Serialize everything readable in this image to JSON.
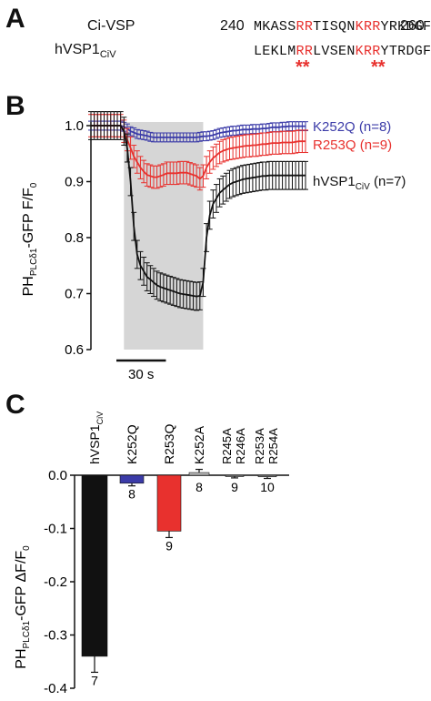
{
  "panels": {
    "a": "A",
    "b": "B",
    "c": "C"
  },
  "sequences": {
    "row1": {
      "name": "Ci-VSP",
      "start": "240",
      "end": "260",
      "segments": [
        {
          "text": "MKASS",
          "red": false
        },
        {
          "text": "RR",
          "red": true
        },
        {
          "text": "TISQN",
          "red": false
        },
        {
          "text": "KRR",
          "red": true
        },
        {
          "text": "YRKDGF",
          "red": false
        }
      ]
    },
    "row2": {
      "name_main": "hVSP1",
      "name_sub": "CiV",
      "segments": [
        {
          "text": "LEKLM",
          "red": false
        },
        {
          "text": "RR",
          "red": true
        },
        {
          "text": "LVSEN",
          "red": false
        },
        {
          "text": "KRR",
          "red": true
        },
        {
          "text": "YTRDGF",
          "red": false
        }
      ],
      "asterisks": "**"
    }
  },
  "colors": {
    "blue": "#3b3ba8",
    "red": "#e8312e",
    "black": "#111111",
    "gray_shade": "#d6d6d6",
    "bar_gray": "#bdbdbd"
  },
  "chart_data": [
    {
      "type": "line",
      "ylabel_main": "PH",
      "ylabel_sub": "PLCδ1",
      "ylabel_rest": "-GFP  F/F",
      "ylabel_sub2": "0",
      "ylim": [
        0.6,
        1.0
      ],
      "yticks": [
        "0.6",
        "0.7",
        "0.8",
        "0.9",
        "1.0"
      ],
      "scale_bar_label": "30 s",
      "x": [
        0,
        2,
        4,
        6,
        8,
        10,
        12,
        14,
        16,
        18,
        20,
        22,
        24,
        26,
        28,
        30,
        32,
        34,
        36,
        38,
        40,
        42,
        44,
        46,
        48,
        50,
        52,
        54,
        56,
        58,
        60,
        62,
        64,
        66,
        68,
        70,
        72,
        74,
        76,
        78,
        80,
        82,
        84,
        86,
        88,
        90,
        92,
        94,
        96,
        98,
        100,
        102,
        104,
        106,
        108,
        110,
        112,
        114,
        116,
        118,
        120,
        122,
        124,
        126,
        128,
        130
      ],
      "series": [
        {
          "name": "K252Q (n=8)",
          "color": "#3b3ba8",
          "values": [
            1.0,
            1.0,
            1.0,
            1.0,
            1.0,
            1.0,
            1.0,
            1.0,
            1.0,
            1.0,
            0.998,
            0.995,
            0.99,
            0.988,
            0.985,
            0.984,
            0.983,
            0.982,
            0.98,
            0.979,
            0.979,
            0.979,
            0.979,
            0.979,
            0.979,
            0.979,
            0.979,
            0.979,
            0.979,
            0.979,
            0.979,
            0.979,
            0.979,
            0.98,
            0.981,
            0.981,
            0.982,
            0.983,
            0.985,
            0.987,
            0.988,
            0.989,
            0.99,
            0.991,
            0.991,
            0.992,
            0.993,
            0.993,
            0.993,
            0.994,
            0.994,
            0.994,
            0.995,
            0.995,
            0.996,
            0.997,
            0.997,
            0.997,
            0.998,
            0.998,
            0.999,
            0.999,
            0.999,
            0.999,
            0.999,
            0.999
          ],
          "error": 0.008
        },
        {
          "name": "R253Q (n=9)",
          "color": "#e8312e",
          "values": [
            1.0,
            1.0,
            1.0,
            1.0,
            1.0,
            1.0,
            1.0,
            1.0,
            1.0,
            1.0,
            0.99,
            0.975,
            0.96,
            0.945,
            0.935,
            0.925,
            0.918,
            0.912,
            0.91,
            0.908,
            0.908,
            0.91,
            0.912,
            0.915,
            0.915,
            0.915,
            0.915,
            0.916,
            0.916,
            0.916,
            0.914,
            0.912,
            0.91,
            0.905,
            0.91,
            0.925,
            0.935,
            0.942,
            0.947,
            0.952,
            0.955,
            0.957,
            0.959,
            0.96,
            0.961,
            0.962,
            0.963,
            0.964,
            0.964,
            0.965,
            0.965,
            0.966,
            0.967,
            0.967,
            0.968,
            0.969,
            0.969,
            0.969,
            0.97,
            0.97,
            0.97,
            0.97,
            0.971,
            0.972,
            0.972,
            0.972
          ],
          "error": 0.02
        },
        {
          "name_main": "hVSP1",
          "name_sub": "CiV",
          "name_rest": " (n=7)",
          "color": "#111111",
          "values": [
            1.0,
            1.0,
            1.0,
            1.0,
            1.0,
            1.0,
            1.0,
            1.0,
            1.0,
            1.0,
            0.99,
            0.96,
            0.9,
            0.82,
            0.77,
            0.75,
            0.74,
            0.73,
            0.725,
            0.72,
            0.715,
            0.712,
            0.71,
            0.708,
            0.706,
            0.704,
            0.702,
            0.7,
            0.699,
            0.698,
            0.697,
            0.696,
            0.695,
            0.696,
            0.72,
            0.8,
            0.84,
            0.86,
            0.87,
            0.88,
            0.885,
            0.89,
            0.895,
            0.898,
            0.9,
            0.902,
            0.904,
            0.905,
            0.906,
            0.907,
            0.908,
            0.909,
            0.91,
            0.91,
            0.911,
            0.911,
            0.911,
            0.911,
            0.911,
            0.911,
            0.911,
            0.911,
            0.911,
            0.911,
            0.911,
            0.911
          ],
          "error": 0.025
        }
      ],
      "stim_start": 20,
      "stim_end": 68
    },
    {
      "type": "bar",
      "ylabel_main": "PH",
      "ylabel_sub": "PLCδ1",
      "ylabel_rest": "-GFP  ΔF/F",
      "ylabel_sub2": "0",
      "ylim": [
        -0.4,
        0.0
      ],
      "yticks": [
        "-0.4",
        "-0.3",
        "-0.2",
        "-0.1",
        "0.0"
      ],
      "categories": [
        {
          "main": "hVSP1",
          "sub": "CiV"
        },
        {
          "main": "K252Q",
          "sub": ""
        },
        {
          "main": "R253Q",
          "sub": ""
        },
        {
          "main": "K252A",
          "sub": ""
        },
        {
          "main": "R245A",
          "line2": "R246A"
        },
        {
          "main": "R253A",
          "line2": "R254A"
        }
      ],
      "values": [
        -0.34,
        -0.015,
        -0.105,
        0.005,
        -0.002,
        -0.003
      ],
      "errors": [
        0.03,
        0.005,
        0.012,
        0.006,
        0.003,
        0.003
      ],
      "n_labels": [
        "7",
        "8",
        "9",
        "8",
        "9",
        "10"
      ],
      "bar_colors": [
        "#111111",
        "#3b3ba8",
        "#e8312e",
        "#bdbdbd",
        "#888888",
        "#888888"
      ]
    }
  ]
}
